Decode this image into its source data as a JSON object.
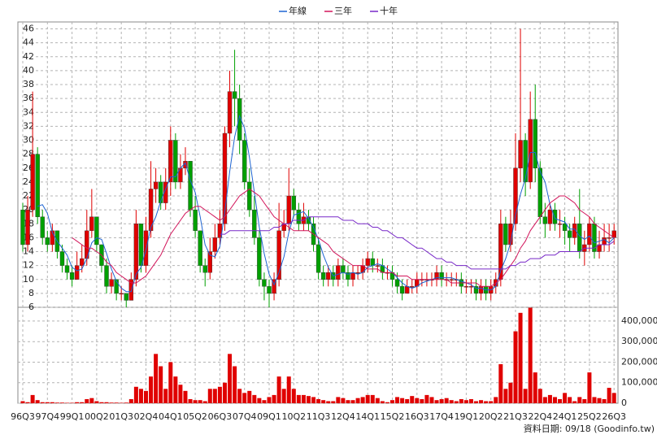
{
  "chart_data": {
    "type": "candlestick",
    "categories": [
      "96Q3",
      null,
      null,
      null,
      null,
      "97Q4",
      null,
      null,
      null,
      null,
      "99Q1",
      null,
      null,
      null,
      null,
      "00Q2",
      null,
      null,
      null,
      null,
      "01Q3",
      null,
      null,
      null,
      null,
      "02Q4",
      null,
      null,
      null,
      null,
      "04Q1",
      null,
      null,
      null,
      null,
      "05Q2",
      null,
      null,
      null,
      null,
      "06Q3",
      null,
      null,
      null,
      null,
      "07Q4",
      null,
      null,
      null,
      null,
      "09Q1",
      null,
      null,
      null,
      null,
      "10Q2",
      null,
      null,
      null,
      null,
      "11Q3",
      null,
      null,
      null,
      null,
      "12Q4",
      null,
      null,
      null,
      null,
      "14Q1",
      null,
      null,
      null,
      null,
      "15Q2",
      null,
      null,
      null,
      null,
      "16Q3",
      null,
      null,
      null,
      null,
      "17Q4",
      null,
      null,
      null,
      null,
      "19Q1",
      null,
      null,
      null,
      null,
      "20Q2",
      null,
      null,
      null,
      null,
      "21Q3",
      null,
      null,
      null,
      null,
      "22Q4",
      null,
      null,
      null,
      null,
      "24Q1",
      null,
      null,
      null,
      null,
      "25Q2",
      null,
      null,
      null,
      null,
      "26Q3"
    ],
    "open": [
      20,
      15,
      20,
      28,
      19,
      16,
      15,
      17,
      14,
      12,
      11,
      10,
      12,
      13,
      17,
      19,
      15,
      12,
      9,
      10,
      8,
      8,
      7,
      10,
      18,
      12,
      17,
      23,
      24,
      21,
      24,
      30,
      24,
      26,
      27,
      20,
      17,
      12,
      11,
      14,
      16,
      18,
      31,
      37,
      36,
      30,
      24,
      20,
      16,
      10,
      9,
      8,
      10,
      17,
      18,
      22,
      20,
      18,
      19,
      18,
      15,
      11,
      10,
      11,
      10,
      12,
      11,
      10,
      11,
      11,
      12,
      13,
      12,
      12,
      11,
      11,
      10,
      9,
      8,
      9,
      9,
      10,
      10,
      10,
      10,
      11,
      10,
      10,
      10,
      10,
      9,
      9,
      9,
      8,
      9,
      8,
      9,
      10,
      18,
      15,
      18,
      26,
      30,
      24,
      33,
      26,
      19,
      18,
      20,
      18,
      18,
      17,
      16,
      18,
      14,
      15,
      18,
      14,
      15,
      16,
      16
    ],
    "high": [
      21,
      22,
      37,
      29,
      20,
      17,
      18,
      17,
      15,
      13,
      12,
      14,
      15,
      20,
      23,
      19,
      15,
      13,
      11,
      10,
      9,
      8,
      11,
      20,
      18,
      19,
      27,
      26,
      25,
      26,
      32,
      31,
      28,
      29,
      27,
      22,
      17,
      13,
      16,
      18,
      20,
      32,
      40,
      43,
      38,
      31,
      26,
      22,
      17,
      11,
      10,
      11,
      21,
      20,
      26,
      23,
      21,
      21,
      20,
      19,
      16,
      12,
      12,
      12,
      13,
      13,
      12,
      12,
      12,
      13,
      14,
      14,
      13,
      13,
      12,
      12,
      11,
      10,
      10,
      10,
      11,
      11,
      11,
      11,
      12,
      12,
      11,
      11,
      11,
      11,
      10,
      10,
      10,
      10,
      10,
      10,
      11,
      20,
      19,
      20,
      31,
      46,
      31,
      37,
      38,
      27,
      21,
      21,
      21,
      20,
      19,
      18,
      19,
      23,
      17,
      19,
      19,
      17,
      18,
      18,
      18
    ],
    "low": [
      14,
      14,
      19,
      18,
      15,
      14,
      14,
      13,
      11,
      10,
      9,
      10,
      11,
      12,
      16,
      14,
      11,
      8,
      8,
      7,
      7,
      6,
      7,
      9,
      11,
      11,
      16,
      21,
      20,
      20,
      22,
      23,
      23,
      25,
      19,
      16,
      11,
      9,
      10,
      13,
      15,
      17,
      29,
      32,
      28,
      23,
      19,
      15,
      9,
      7,
      6,
      7,
      9,
      16,
      17,
      19,
      17,
      17,
      17,
      14,
      10,
      9,
      9,
      9,
      9,
      10,
      9,
      9,
      10,
      10,
      11,
      11,
      11,
      10,
      10,
      9,
      8,
      7,
      8,
      8,
      8,
      9,
      9,
      9,
      9,
      9,
      9,
      9,
      9,
      8,
      8,
      8,
      7,
      7,
      7,
      7,
      8,
      9,
      14,
      14,
      17,
      24,
      22,
      23,
      24,
      18,
      16,
      17,
      17,
      16,
      15,
      14,
      15,
      13,
      12,
      14,
      13,
      13,
      14,
      14,
      15
    ],
    "close": [
      15,
      20,
      28,
      19,
      16,
      15,
      17,
      14,
      12,
      11,
      10,
      12,
      13,
      17,
      19,
      15,
      12,
      9,
      10,
      8,
      8,
      7,
      10,
      18,
      12,
      17,
      23,
      24,
      21,
      24,
      30,
      24,
      26,
      27,
      20,
      17,
      12,
      11,
      14,
      16,
      18,
      31,
      37,
      36,
      30,
      24,
      20,
      16,
      10,
      9,
      8,
      10,
      17,
      18,
      22,
      20,
      18,
      19,
      18,
      15,
      11,
      10,
      11,
      10,
      12,
      11,
      10,
      11,
      11,
      12,
      13,
      12,
      12,
      11,
      11,
      10,
      9,
      8,
      9,
      9,
      10,
      10,
      10,
      10,
      11,
      10,
      10,
      10,
      10,
      9,
      9,
      9,
      8,
      9,
      8,
      9,
      10,
      18,
      15,
      18,
      26,
      30,
      24,
      33,
      26,
      19,
      18,
      20,
      18,
      18,
      17,
      16,
      18,
      14,
      15,
      18,
      14,
      15,
      16,
      16,
      17
    ],
    "volume": [
      10000,
      5000,
      40000,
      15000,
      5000,
      5000,
      5000,
      3000,
      3000,
      2000,
      2000,
      5000,
      5000,
      20000,
      25000,
      10000,
      5000,
      5000,
      3000,
      3000,
      2000,
      3000,
      20000,
      80000,
      70000,
      60000,
      130000,
      240000,
      180000,
      70000,
      200000,
      130000,
      90000,
      60000,
      20000,
      15000,
      15000,
      10000,
      70000,
      70000,
      80000,
      100000,
      240000,
      180000,
      70000,
      50000,
      60000,
      40000,
      25000,
      15000,
      30000,
      40000,
      130000,
      70000,
      130000,
      70000,
      40000,
      40000,
      35000,
      30000,
      20000,
      15000,
      10000,
      10000,
      30000,
      25000,
      15000,
      15000,
      25000,
      30000,
      40000,
      40000,
      25000,
      10000,
      5000,
      15000,
      30000,
      25000,
      20000,
      35000,
      25000,
      20000,
      40000,
      30000,
      15000,
      20000,
      25000,
      15000,
      10000,
      20000,
      15000,
      20000,
      10000,
      15000,
      10000,
      10000,
      30000,
      190000,
      70000,
      100000,
      350000,
      440000,
      70000,
      465000,
      150000,
      70000,
      30000,
      40000,
      30000,
      20000,
      50000,
      30000,
      10000,
      30000,
      20000,
      150000,
      30000,
      25000,
      20000,
      75000,
      50000
    ],
    "up_color": "#e00000",
    "down_color": "#00a000",
    "volume_color": "#e00000",
    "series": [
      {
        "name": "年線",
        "color": "#1e64d2",
        "values": [
          null,
          null,
          null,
          20.5,
          20.75,
          19.5,
          16.75,
          15.5,
          14.5,
          13.5,
          11.75,
          11.25,
          11.5,
          13,
          15.25,
          16,
          15.75,
          13.75,
          11.5,
          9.75,
          8.75,
          8.25,
          8.25,
          10.75,
          11.75,
          14.25,
          17.5,
          19,
          21.25,
          23,
          24.75,
          24.75,
          26,
          26.75,
          24.25,
          22.5,
          19,
          15,
          13.5,
          13.25,
          14.75,
          19.75,
          25.5,
          30.5,
          33.5,
          31.75,
          27.5,
          22.5,
          17.5,
          13.75,
          10.75,
          9.25,
          11,
          13.25,
          16.75,
          19.25,
          19.5,
          19.75,
          18.75,
          17.5,
          15.75,
          13.5,
          11.75,
          10.5,
          10.75,
          11,
          10.75,
          11,
          10.75,
          11,
          11.75,
          12,
          12.25,
          12,
          11.5,
          11,
          10.25,
          9.5,
          9,
          8.75,
          9,
          9.5,
          9.75,
          10,
          10.25,
          10.25,
          10.25,
          10.25,
          10,
          9.75,
          9.5,
          9.25,
          8.75,
          8.75,
          8.5,
          8.5,
          9,
          11.25,
          13,
          15.25,
          19.25,
          22.25,
          24.5,
          28.25,
          28.25,
          25.5,
          24,
          20.75,
          18.75,
          18.5,
          18.25,
          17.25,
          17.25,
          16.25,
          15.75,
          16.25,
          15.25,
          15.5,
          15.75,
          15.25,
          16
        ]
      },
      {
        "name": "三年",
        "color": "#d2145a",
        "values": [
          null,
          null,
          null,
          null,
          null,
          null,
          null,
          null,
          null,
          null,
          16,
          15.5,
          15,
          14.5,
          14.5,
          14,
          13.5,
          12.5,
          12,
          11,
          10.5,
          10,
          9.5,
          9.5,
          10,
          10.5,
          11.5,
          12.5,
          13.5,
          15,
          16.5,
          17.5,
          18.5,
          19.5,
          20,
          20.5,
          20.5,
          20,
          19.5,
          19,
          18.5,
          19,
          20,
          21,
          22,
          22.5,
          23,
          22.5,
          22,
          21,
          20,
          19,
          18.5,
          18,
          17.5,
          17,
          17,
          17,
          17,
          16.5,
          16,
          15.5,
          15,
          14,
          13.5,
          13,
          12.5,
          12,
          12,
          12,
          11.5,
          11.5,
          11.5,
          11,
          11,
          11,
          10.5,
          10.5,
          10.5,
          10,
          10,
          10,
          10,
          10,
          10,
          10,
          10,
          9.5,
          9.5,
          9.5,
          9.5,
          9.5,
          9.5,
          9,
          9,
          9,
          9.5,
          10,
          11,
          12,
          13,
          14.5,
          15.5,
          17,
          18,
          19,
          20,
          21,
          21.5,
          22,
          22,
          21.5,
          21,
          20,
          19.5,
          19,
          18,
          17.5,
          17,
          16.5,
          16
        ]
      },
      {
        "name": "十年",
        "color": "#7828c8",
        "values": [
          null,
          null,
          null,
          null,
          null,
          null,
          null,
          null,
          null,
          null,
          null,
          null,
          null,
          null,
          null,
          null,
          null,
          null,
          null,
          null,
          null,
          null,
          null,
          null,
          null,
          null,
          null,
          null,
          null,
          null,
          null,
          null,
          null,
          null,
          null,
          null,
          null,
          null,
          null,
          null,
          16.5,
          16.5,
          17,
          17,
          17,
          17,
          17,
          17,
          17,
          17,
          17,
          17.5,
          17.5,
          18,
          18,
          18.5,
          18.5,
          18.5,
          19,
          19,
          19,
          19,
          19,
          19,
          19,
          18.5,
          18.5,
          18.5,
          18,
          18,
          18,
          17.5,
          17.5,
          17,
          17,
          16.5,
          16,
          16,
          15.5,
          15,
          14.5,
          14.5,
          14,
          13.5,
          13,
          13,
          12.5,
          12.5,
          12,
          12,
          12,
          11.5,
          11.5,
          11.5,
          11.5,
          11.5,
          11.5,
          11.5,
          11.5,
          12,
          12,
          12.5,
          12.5,
          13,
          13,
          13,
          13.5,
          13.5,
          13.5,
          14,
          14,
          14,
          14,
          14,
          14.5,
          14.5,
          14.5,
          15,
          15,
          15,
          15.5
        ]
      }
    ],
    "ylim": [
      6,
      47
    ],
    "yticks": [
      6,
      8,
      10,
      12,
      14,
      16,
      18,
      20,
      22,
      24,
      26,
      28,
      30,
      32,
      34,
      36,
      38,
      40,
      42,
      44,
      46
    ],
    "y2lim": [
      0,
      467000
    ],
    "y2ticks": [
      0,
      {
        "value": 100000,
        "label": "100,000"
      },
      {
        "value": 200000,
        "label": "200,000"
      },
      {
        "value": 300000,
        "label": "300,000"
      },
      {
        "value": 400000,
        "label": "400,000"
      }
    ],
    "grid": true,
    "legend": "top",
    "source_note": "資料日期: 09/18 (Goodinfo.tw)"
  }
}
